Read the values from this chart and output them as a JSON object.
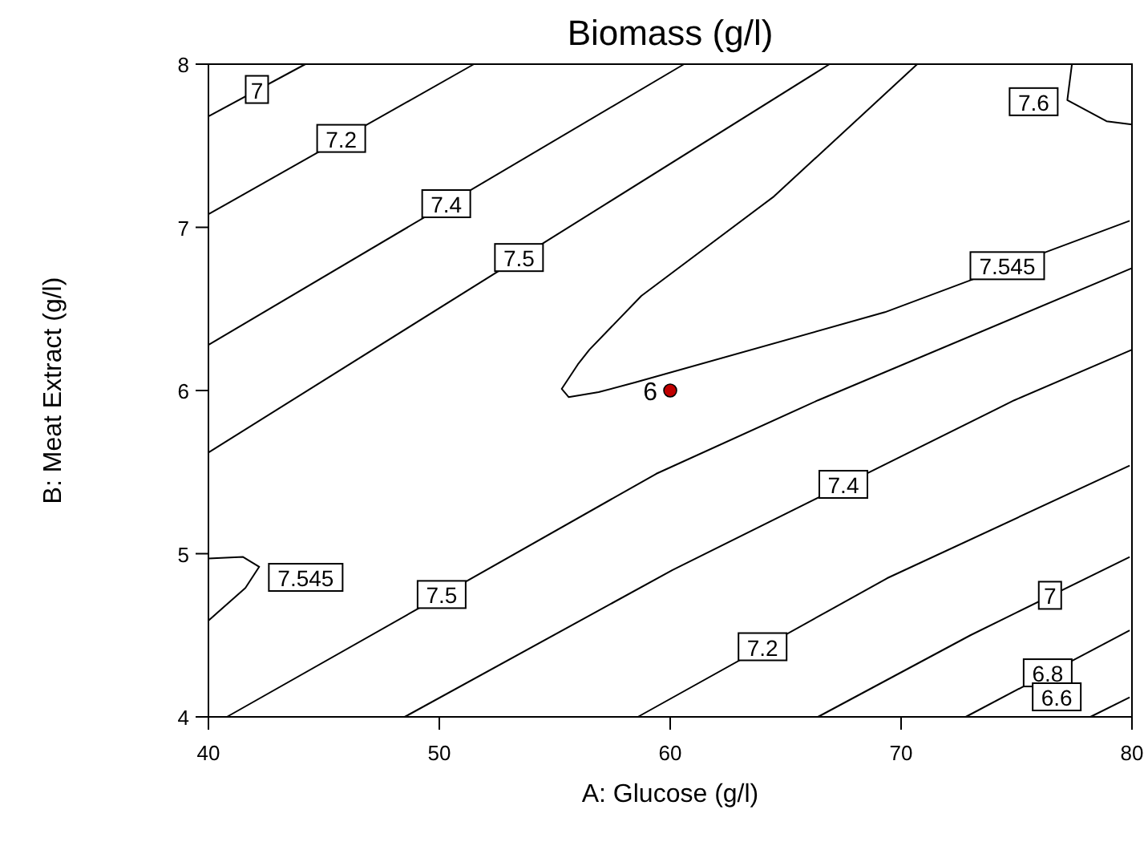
{
  "chart_data": {
    "type": "line",
    "title": "Biomass (g/l)",
    "xlabel": "A: Glucose (g/l)",
    "ylabel": "B: Meat Extract (g/l)",
    "xlim": [
      40,
      80
    ],
    "xticks": [
      40,
      50,
      60,
      70,
      80
    ],
    "ylim": [
      4,
      8
    ],
    "yticks": [
      4,
      5,
      6,
      7,
      8
    ],
    "grid": false,
    "line_style": "solid",
    "series": [
      {
        "name": "7",
        "color": "#000000",
        "x": [
          40,
          44.2
        ],
        "values": [
          7.68,
          8
        ]
      },
      {
        "name": "7.2",
        "color": "#000000",
        "x": [
          40,
          51.5
        ],
        "values": [
          7.08,
          8
        ]
      },
      {
        "name": "7.4",
        "color": "#000000",
        "x": [
          40,
          60.6
        ],
        "values": [
          6.28,
          8
        ]
      },
      {
        "name": "7.5",
        "color": "#000000",
        "x": [
          40,
          66.9
        ],
        "values": [
          5.62,
          8
        ]
      },
      {
        "name": "7.545",
        "color": "#000000",
        "x": [
          70.7,
          64.5,
          58.75,
          56.5,
          56,
          55.3,
          55.6,
          56.9,
          58.5,
          69.3,
          79.9
        ],
        "values": [
          8,
          7.19,
          6.58,
          6.25,
          6.16,
          6.01,
          5.96,
          5.99,
          6.05,
          6.48,
          7.04
        ]
      },
      {
        "name": "7.6",
        "color": "#000000",
        "x": [
          77.4,
          77.2,
          78.9,
          80
        ],
        "values": [
          8,
          7.78,
          7.65,
          7.63
        ]
      },
      {
        "name": "7.545",
        "color": "#000000",
        "x": [
          40,
          41.5,
          42.2,
          41.6,
          40
        ],
        "values": [
          4.97,
          4.98,
          4.92,
          4.79,
          4.59
        ]
      },
      {
        "name": "7.5",
        "color": "#000000",
        "x": [
          40.8,
          59.4,
          66.4,
          80
        ],
        "values": [
          4,
          5.49,
          5.94,
          6.75
        ]
      },
      {
        "name": "7.4",
        "color": "#000000",
        "x": [
          48.5,
          60.1,
          74.9,
          80
        ],
        "values": [
          4,
          4.9,
          5.94,
          6.25
        ]
      },
      {
        "name": "7.2",
        "color": "#000000",
        "x": [
          58.6,
          69.4,
          79.9
        ],
        "values": [
          4,
          4.85,
          5.54
        ]
      },
      {
        "name": "7",
        "color": "#000000",
        "x": [
          66.4,
          73,
          79.9
        ],
        "values": [
          4,
          4.5,
          4.98
        ]
      },
      {
        "name": "6.8",
        "color": "#000000",
        "x": [
          72.8,
          79.9
        ],
        "values": [
          4,
          4.53
        ]
      },
      {
        "name": "6.6",
        "color": "#000000",
        "x": [
          78.2,
          79.9
        ],
        "values": [
          4,
          4.12
        ]
      },
      {
        "type": "scatter",
        "color": "#c00000",
        "x": [
          60
        ],
        "values": [
          6
        ]
      }
    ],
    "annotations": [
      {
        "text": "6",
        "x": 60,
        "y": 6
      }
    ]
  }
}
